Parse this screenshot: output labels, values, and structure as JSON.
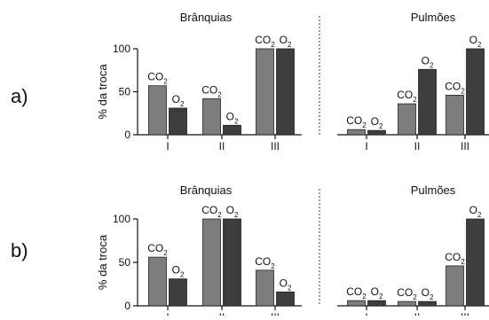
{
  "chart_data": [
    {
      "type": "bar",
      "panel_label": "a)",
      "ylabel": "% da troca",
      "ylim": [
        0,
        100
      ],
      "yticks": [
        "0",
        "50",
        "100"
      ],
      "bar_labels": [
        "CO2",
        "O2"
      ],
      "colors": {
        "CO2": "#7d7d7d",
        "O2": "#3d3d3d"
      },
      "groups": [
        {
          "title": "Brânquias",
          "categories": [
            "I",
            "II",
            "III"
          ],
          "series": [
            {
              "name": "CO2",
              "values": [
                57,
                42,
                100
              ]
            },
            {
              "name": "O2",
              "values": [
                31,
                11,
                100
              ]
            }
          ]
        },
        {
          "title": "Pulmões",
          "categories": [
            "I",
            "II",
            "III"
          ],
          "series": [
            {
              "name": "CO2",
              "values": [
                6,
                36,
                46
              ]
            },
            {
              "name": "O2",
              "values": [
                5,
                76,
                100
              ]
            }
          ]
        }
      ]
    },
    {
      "type": "bar",
      "panel_label": "b)",
      "ylabel": "% da troca",
      "ylim": [
        0,
        100
      ],
      "yticks": [
        "0",
        "50",
        "100"
      ],
      "bar_labels": [
        "CO2",
        "O2"
      ],
      "colors": {
        "CO2": "#7d7d7d",
        "O2": "#3d3d3d"
      },
      "groups": [
        {
          "title": "Brânquias",
          "categories": [
            "I",
            "II",
            "III"
          ],
          "series": [
            {
              "name": "CO2",
              "values": [
                56,
                100,
                41
              ]
            },
            {
              "name": "O2",
              "values": [
                31,
                100,
                16
              ]
            }
          ]
        },
        {
          "title": "Pulmões",
          "categories": [
            "I",
            "II",
            "III"
          ],
          "series": [
            {
              "name": "CO2",
              "values": [
                6,
                5,
                46
              ]
            },
            {
              "name": "O2",
              "values": [
                6,
                5,
                100
              ]
            }
          ]
        }
      ]
    }
  ]
}
